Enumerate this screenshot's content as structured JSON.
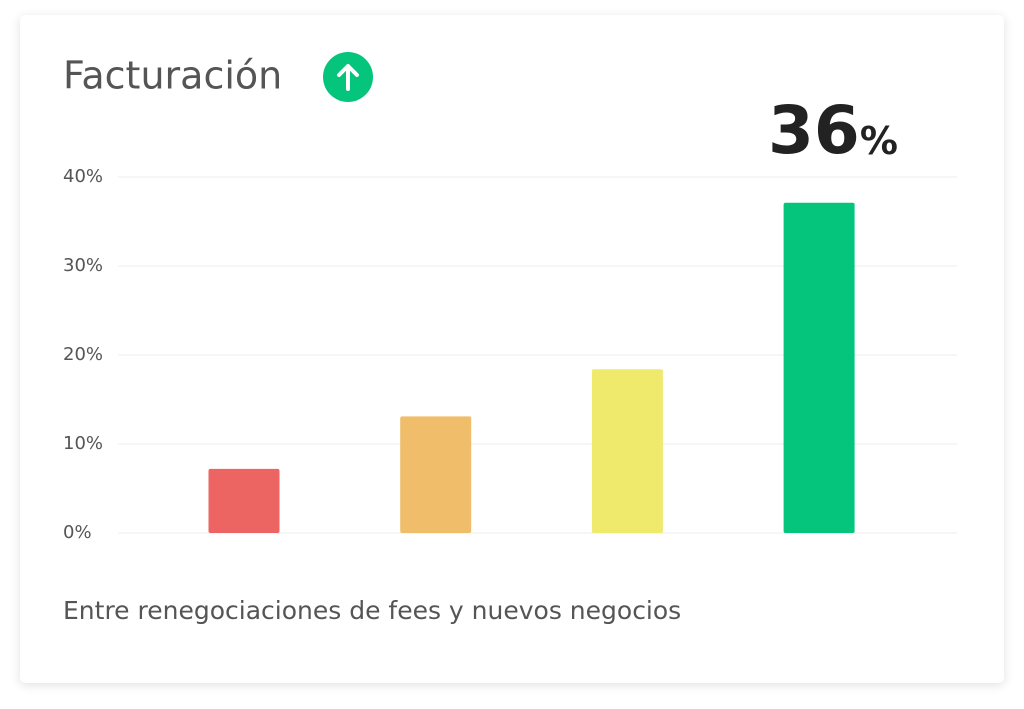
{
  "chart_data": {
    "type": "bar",
    "title": "Facturación",
    "subtitle": "Entre renegociaciones de fees y nuevos negocios",
    "highlight_value": "36",
    "highlight_unit": "%",
    "categories": [
      null,
      null,
      null,
      null
    ],
    "values": [
      7.2,
      13.1,
      18.4,
      37.1
    ],
    "colors": [
      "#ec6562",
      "#f0be6a",
      "#efe96c",
      "#05c47c"
    ],
    "ylim": [
      0,
      40
    ],
    "yticks": [
      {
        "value": 0,
        "label": "0%"
      },
      {
        "value": 10,
        "label": "10%"
      },
      {
        "value": 20,
        "label": "20%"
      },
      {
        "value": 30,
        "label": "30%"
      },
      {
        "value": 40,
        "label": "40%"
      }
    ],
    "grid": true
  }
}
